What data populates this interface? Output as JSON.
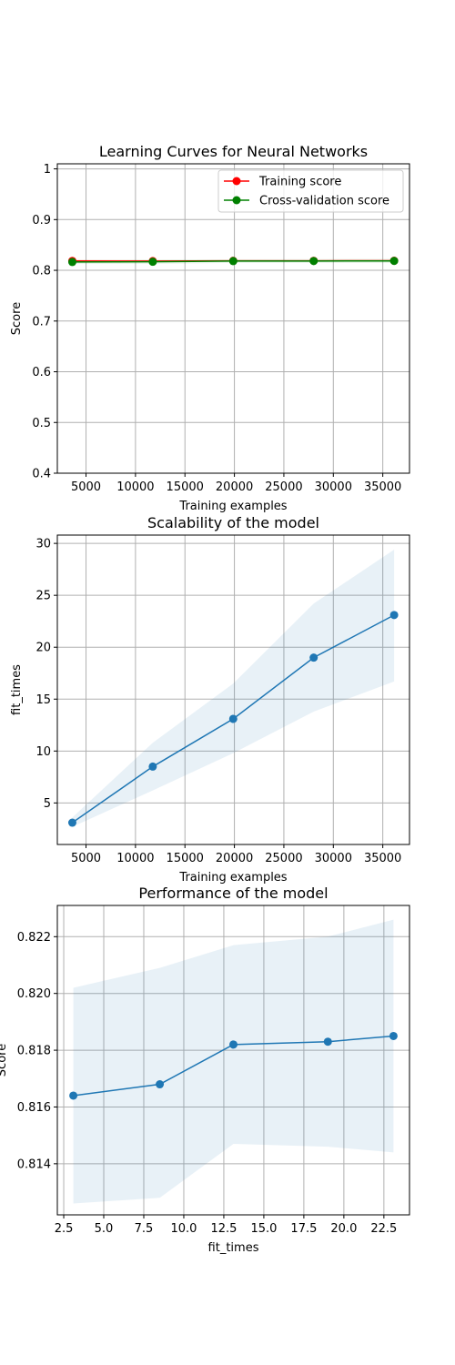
{
  "chart_data": [
    {
      "type": "line",
      "title": "Learning Curves for Neural Networks",
      "xlabel": "Training examples",
      "ylabel": "Score",
      "xlim": [
        2100,
        37700
      ],
      "ylim": [
        0.4,
        1.01
      ],
      "xticks": [
        5000,
        10000,
        15000,
        20000,
        25000,
        30000,
        35000
      ],
      "yticks": [
        0.4,
        0.5,
        0.6,
        0.7,
        0.8,
        0.9,
        1.0
      ],
      "grid": true,
      "legend": "top-right",
      "x": [
        3615,
        11748,
        19882,
        28015,
        36148
      ],
      "series": [
        {
          "name": "Training score",
          "color": "#ff0000",
          "marker": "circle",
          "values": [
            0.8185,
            0.8182,
            0.8187,
            0.8188,
            0.8189
          ],
          "band": [
            [
              0.816,
              0.821
            ],
            [
              0.8165,
              0.82
            ],
            [
              0.8175,
              0.82
            ],
            [
              0.8178,
              0.8198
            ],
            [
              0.8178,
              0.8198
            ]
          ]
        },
        {
          "name": "Cross-validation score",
          "color": "#008000",
          "marker": "circle",
          "values": [
            0.8164,
            0.8168,
            0.8182,
            0.8183,
            0.8185
          ],
          "band": [
            [
              0.8126,
              0.8202
            ],
            [
              0.8128,
              0.8209
            ],
            [
              0.8147,
              0.8217
            ],
            [
              0.8146,
              0.822
            ],
            [
              0.8144,
              0.8226
            ]
          ]
        }
      ]
    },
    {
      "type": "line",
      "title": "Scalability of the model",
      "xlabel": "Training examples",
      "ylabel": "fit_times",
      "xlim": [
        2100,
        37700
      ],
      "ylim": [
        1.0,
        30.8
      ],
      "xticks": [
        5000,
        10000,
        15000,
        20000,
        25000,
        30000,
        35000
      ],
      "yticks": [
        5,
        10,
        15,
        20,
        25,
        30
      ],
      "grid": true,
      "x": [
        3615,
        11748,
        19882,
        28015,
        36148
      ],
      "series": [
        {
          "color": "#1f77b4",
          "marker": "circle",
          "values": [
            3.1,
            8.5,
            13.1,
            19.0,
            23.1
          ],
          "band": [
            [
              2.7,
              3.6
            ],
            [
              6.2,
              10.8
            ],
            [
              9.8,
              16.5
            ],
            [
              13.8,
              24.2
            ],
            [
              16.7,
              29.4
            ]
          ]
        }
      ]
    },
    {
      "type": "line",
      "title": "Performance of the model",
      "xlabel": "fit_times",
      "ylabel": "Score",
      "xlim": [
        2.1,
        24.1
      ],
      "ylim": [
        0.8122,
        0.8231
      ],
      "xticks": [
        2.5,
        5.0,
        7.5,
        10.0,
        12.5,
        15.0,
        17.5,
        20.0,
        22.5
      ],
      "xtick_labels": [
        "2.5",
        "5.0",
        "7.5",
        "10.0",
        "12.5",
        "15.0",
        "17.5",
        "20.0",
        "22.5"
      ],
      "yticks": [
        0.814,
        0.816,
        0.818,
        0.82,
        0.822
      ],
      "ytick_labels": [
        "0.814",
        "0.816",
        "0.818",
        "0.820",
        "0.822"
      ],
      "grid": true,
      "x": [
        3.1,
        8.5,
        13.1,
        19.0,
        23.1
      ],
      "series": [
        {
          "color": "#1f77b4",
          "marker": "circle",
          "values": [
            0.8164,
            0.8168,
            0.8182,
            0.8183,
            0.8185
          ],
          "band": [
            [
              0.8126,
              0.8202
            ],
            [
              0.8128,
              0.8209
            ],
            [
              0.8147,
              0.8217
            ],
            [
              0.8146,
              0.822
            ],
            [
              0.8144,
              0.8226
            ]
          ]
        }
      ]
    }
  ]
}
